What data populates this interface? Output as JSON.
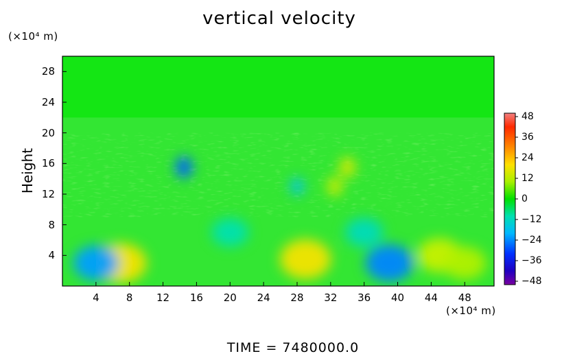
{
  "chart_data": {
    "type": "heatmap",
    "title": "vertical velocity",
    "xlabel": "",
    "ylabel": "Height",
    "x_unit_label": "(×10⁴ m)",
    "y_unit_label": "(×10⁴ m)",
    "x_ticks": [
      "4",
      "8",
      "12",
      "16",
      "20",
      "24",
      "28",
      "32",
      "36",
      "40",
      "44",
      "48"
    ],
    "y_ticks": [
      "4",
      "8",
      "12",
      "16",
      "20",
      "24",
      "28"
    ],
    "xlim": [
      0,
      51.5
    ],
    "ylim": [
      0,
      30
    ],
    "colorbar": {
      "ticks": [
        "48",
        "36",
        "24",
        "12",
        "0",
        "−12",
        "−24",
        "−36",
        "−48"
      ],
      "range": [
        -48,
        48
      ]
    },
    "features": [
      {
        "x": 7,
        "y": 3,
        "value": 22
      },
      {
        "x": 4,
        "y": 3,
        "value": -15
      },
      {
        "x": 29,
        "y": 3.5,
        "value": 22
      },
      {
        "x": 39,
        "y": 3,
        "value": -18
      },
      {
        "x": 45,
        "y": 4,
        "value": 14
      },
      {
        "x": 48,
        "y": 3,
        "value": 12
      },
      {
        "x": 14.5,
        "y": 15.5,
        "value": -22
      },
      {
        "x": 34,
        "y": 15.5,
        "value": 18
      },
      {
        "x": 32.5,
        "y": 13,
        "value": 16
      },
      {
        "x": 28,
        "y": 13,
        "value": -10
      },
      {
        "x": 20,
        "y": 7,
        "value": -5
      },
      {
        "x": 36,
        "y": 7,
        "value": -6
      }
    ],
    "footer_label": "TIME = 7480000.0"
  }
}
